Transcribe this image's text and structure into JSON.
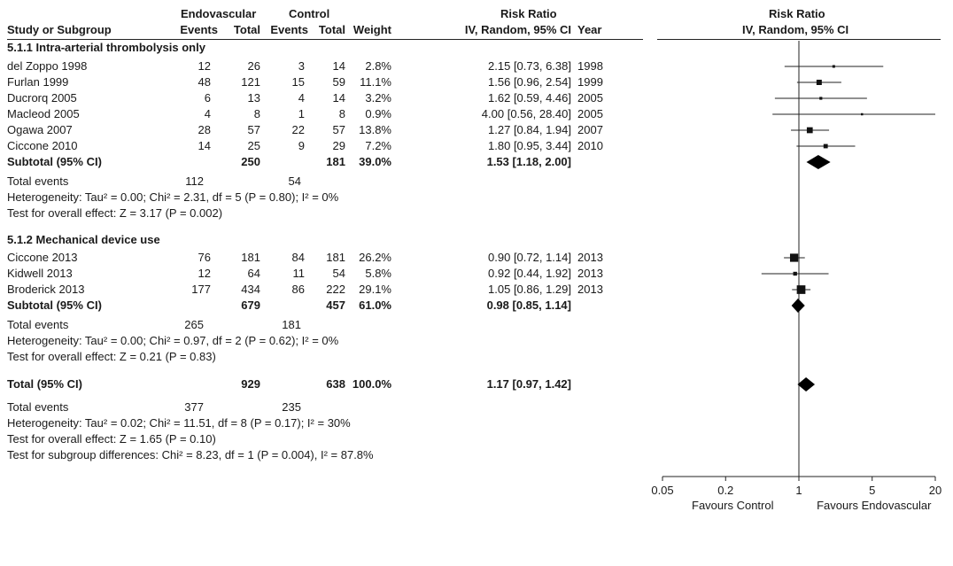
{
  "header": {
    "group_endo": "Endovascular",
    "group_ctrl": "Control",
    "group_rr": "Risk Ratio",
    "col_study": "Study or Subgroup",
    "col_endo_events": "Events",
    "col_endo_total": "Total",
    "col_ctrl_events": "Events",
    "col_ctrl_total": "Total",
    "col_weight": "Weight",
    "col_rr": "IV, Random, 95% CI",
    "col_year": "Year",
    "plot_title": "Risk Ratio",
    "plot_subtitle": "IV, Random, 95% CI"
  },
  "sub1": {
    "title": "5.1.1 Intra-arterial thrombolysis only",
    "rows": [
      {
        "study": "del Zoppo 1998",
        "e_events": "12",
        "e_total": "26",
        "c_events": "3",
        "c_total": "14",
        "weight": "2.8%",
        "rr": "2.15 [0.73, 6.38]",
        "year": "1998"
      },
      {
        "study": "Furlan 1999",
        "e_events": "48",
        "e_total": "121",
        "c_events": "15",
        "c_total": "59",
        "weight": "11.1%",
        "rr": "1.56 [0.96, 2.54]",
        "year": "1999"
      },
      {
        "study": "Ducrorq 2005",
        "e_events": "6",
        "e_total": "13",
        "c_events": "4",
        "c_total": "14",
        "weight": "3.2%",
        "rr": "1.62 [0.59, 4.46]",
        "year": "2005"
      },
      {
        "study": "Macleod 2005",
        "e_events": "4",
        "e_total": "8",
        "c_events": "1",
        "c_total": "8",
        "weight": "0.9%",
        "rr": "4.00 [0.56, 28.40]",
        "year": "2005"
      },
      {
        "study": "Ogawa 2007",
        "e_events": "28",
        "e_total": "57",
        "c_events": "22",
        "c_total": "57",
        "weight": "13.8%",
        "rr": "1.27 [0.84, 1.94]",
        "year": "2007"
      },
      {
        "study": "Ciccone 2010",
        "e_events": "14",
        "e_total": "25",
        "c_events": "9",
        "c_total": "29",
        "weight": "7.2%",
        "rr": "1.80 [0.95, 3.44]",
        "year": "2010"
      }
    ],
    "subtotal": {
      "label": "Subtotal (95% CI)",
      "e_total": "250",
      "c_total": "181",
      "weight": "39.0%",
      "rr": "1.53 [1.18, 2.00]"
    },
    "events": {
      "label": "Total events",
      "e": "112",
      "c": "54"
    },
    "heterogeneity": "Heterogeneity: Tau² = 0.00; Chi² = 2.31, df = 5 (P = 0.80); I² = 0%",
    "overall": "Test for overall effect: Z = 3.17 (P = 0.002)"
  },
  "sub2": {
    "title": "5.1.2 Mechanical device use",
    "rows": [
      {
        "study": "Ciccone 2013",
        "e_events": "76",
        "e_total": "181",
        "c_events": "84",
        "c_total": "181",
        "weight": "26.2%",
        "rr": "0.90 [0.72, 1.14]",
        "year": "2013"
      },
      {
        "study": "Kidwell 2013",
        "e_events": "12",
        "e_total": "64",
        "c_events": "11",
        "c_total": "54",
        "weight": "5.8%",
        "rr": "0.92 [0.44, 1.92]",
        "year": "2013"
      },
      {
        "study": "Broderick 2013",
        "e_events": "177",
        "e_total": "434",
        "c_events": "86",
        "c_total": "222",
        "weight": "29.1%",
        "rr": "1.05 [0.86, 1.29]",
        "year": "2013"
      }
    ],
    "subtotal": {
      "label": "Subtotal (95% CI)",
      "e_total": "679",
      "c_total": "457",
      "weight": "61.0%",
      "rr": "0.98 [0.85, 1.14]"
    },
    "events": {
      "label": "Total events",
      "e": "265",
      "c": "181"
    },
    "heterogeneity": "Heterogeneity: Tau² = 0.00; Chi² = 0.97, df = 2 (P = 0.62); I² = 0%",
    "overall": "Test for overall effect: Z = 0.21 (P = 0.83)"
  },
  "total": {
    "label": "Total (95% CI)",
    "e_total": "929",
    "c_total": "638",
    "weight": "100.0%",
    "rr": "1.17 [0.97, 1.42]",
    "events": {
      "label": "Total events",
      "e": "377",
      "c": "235"
    },
    "heterogeneity": "Heterogeneity: Tau² = 0.02; Chi² = 11.51, df = 8 (P = 0.17); I² = 30%",
    "overall": "Test for overall effect: Z = 1.65 (P = 0.10)",
    "subgroup_diff": "Test for subgroup differences: Chi² = 8.23, df = 1 (P = 0.004), I² = 87.8%"
  },
  "chart_data": {
    "type": "scatter",
    "title": "Risk Ratio",
    "subtitle": "IV, Random, 95% CI",
    "x_scale": "log",
    "xlim": [
      0.05,
      20
    ],
    "x_ticks": [
      "0.05",
      "0.2",
      "1",
      "5",
      "20"
    ],
    "xlabel_left": "Favours Control",
    "xlabel_right": "Favours Endovascular",
    "reference_line": 1,
    "studies": [
      {
        "name": "del Zoppo 1998",
        "rr": 2.15,
        "lo": 0.73,
        "hi": 6.38,
        "weight": 2.8
      },
      {
        "name": "Furlan 1999",
        "rr": 1.56,
        "lo": 0.96,
        "hi": 2.54,
        "weight": 11.1
      },
      {
        "name": "Ducrorq 2005",
        "rr": 1.62,
        "lo": 0.59,
        "hi": 4.46,
        "weight": 3.2
      },
      {
        "name": "Macleod 2005",
        "rr": 4.0,
        "lo": 0.56,
        "hi": 28.4,
        "weight": 0.9
      },
      {
        "name": "Ogawa 2007",
        "rr": 1.27,
        "lo": 0.84,
        "hi": 1.94,
        "weight": 13.8
      },
      {
        "name": "Ciccone 2010",
        "rr": 1.8,
        "lo": 0.95,
        "hi": 3.44,
        "weight": 7.2
      },
      {
        "name": "Ciccone 2013",
        "rr": 0.9,
        "lo": 0.72,
        "hi": 1.14,
        "weight": 26.2
      },
      {
        "name": "Kidwell 2013",
        "rr": 0.92,
        "lo": 0.44,
        "hi": 1.92,
        "weight": 5.8
      },
      {
        "name": "Broderick 2013",
        "rr": 1.05,
        "lo": 0.86,
        "hi": 1.29,
        "weight": 29.1
      }
    ],
    "pooled": [
      {
        "name": "Subtotal 5.1.1",
        "rr": 1.53,
        "lo": 1.18,
        "hi": 2.0
      },
      {
        "name": "Subtotal 5.1.2",
        "rr": 0.98,
        "lo": 0.85,
        "hi": 1.14
      },
      {
        "name": "Total",
        "rr": 1.17,
        "lo": 0.97,
        "hi": 1.42
      }
    ]
  }
}
